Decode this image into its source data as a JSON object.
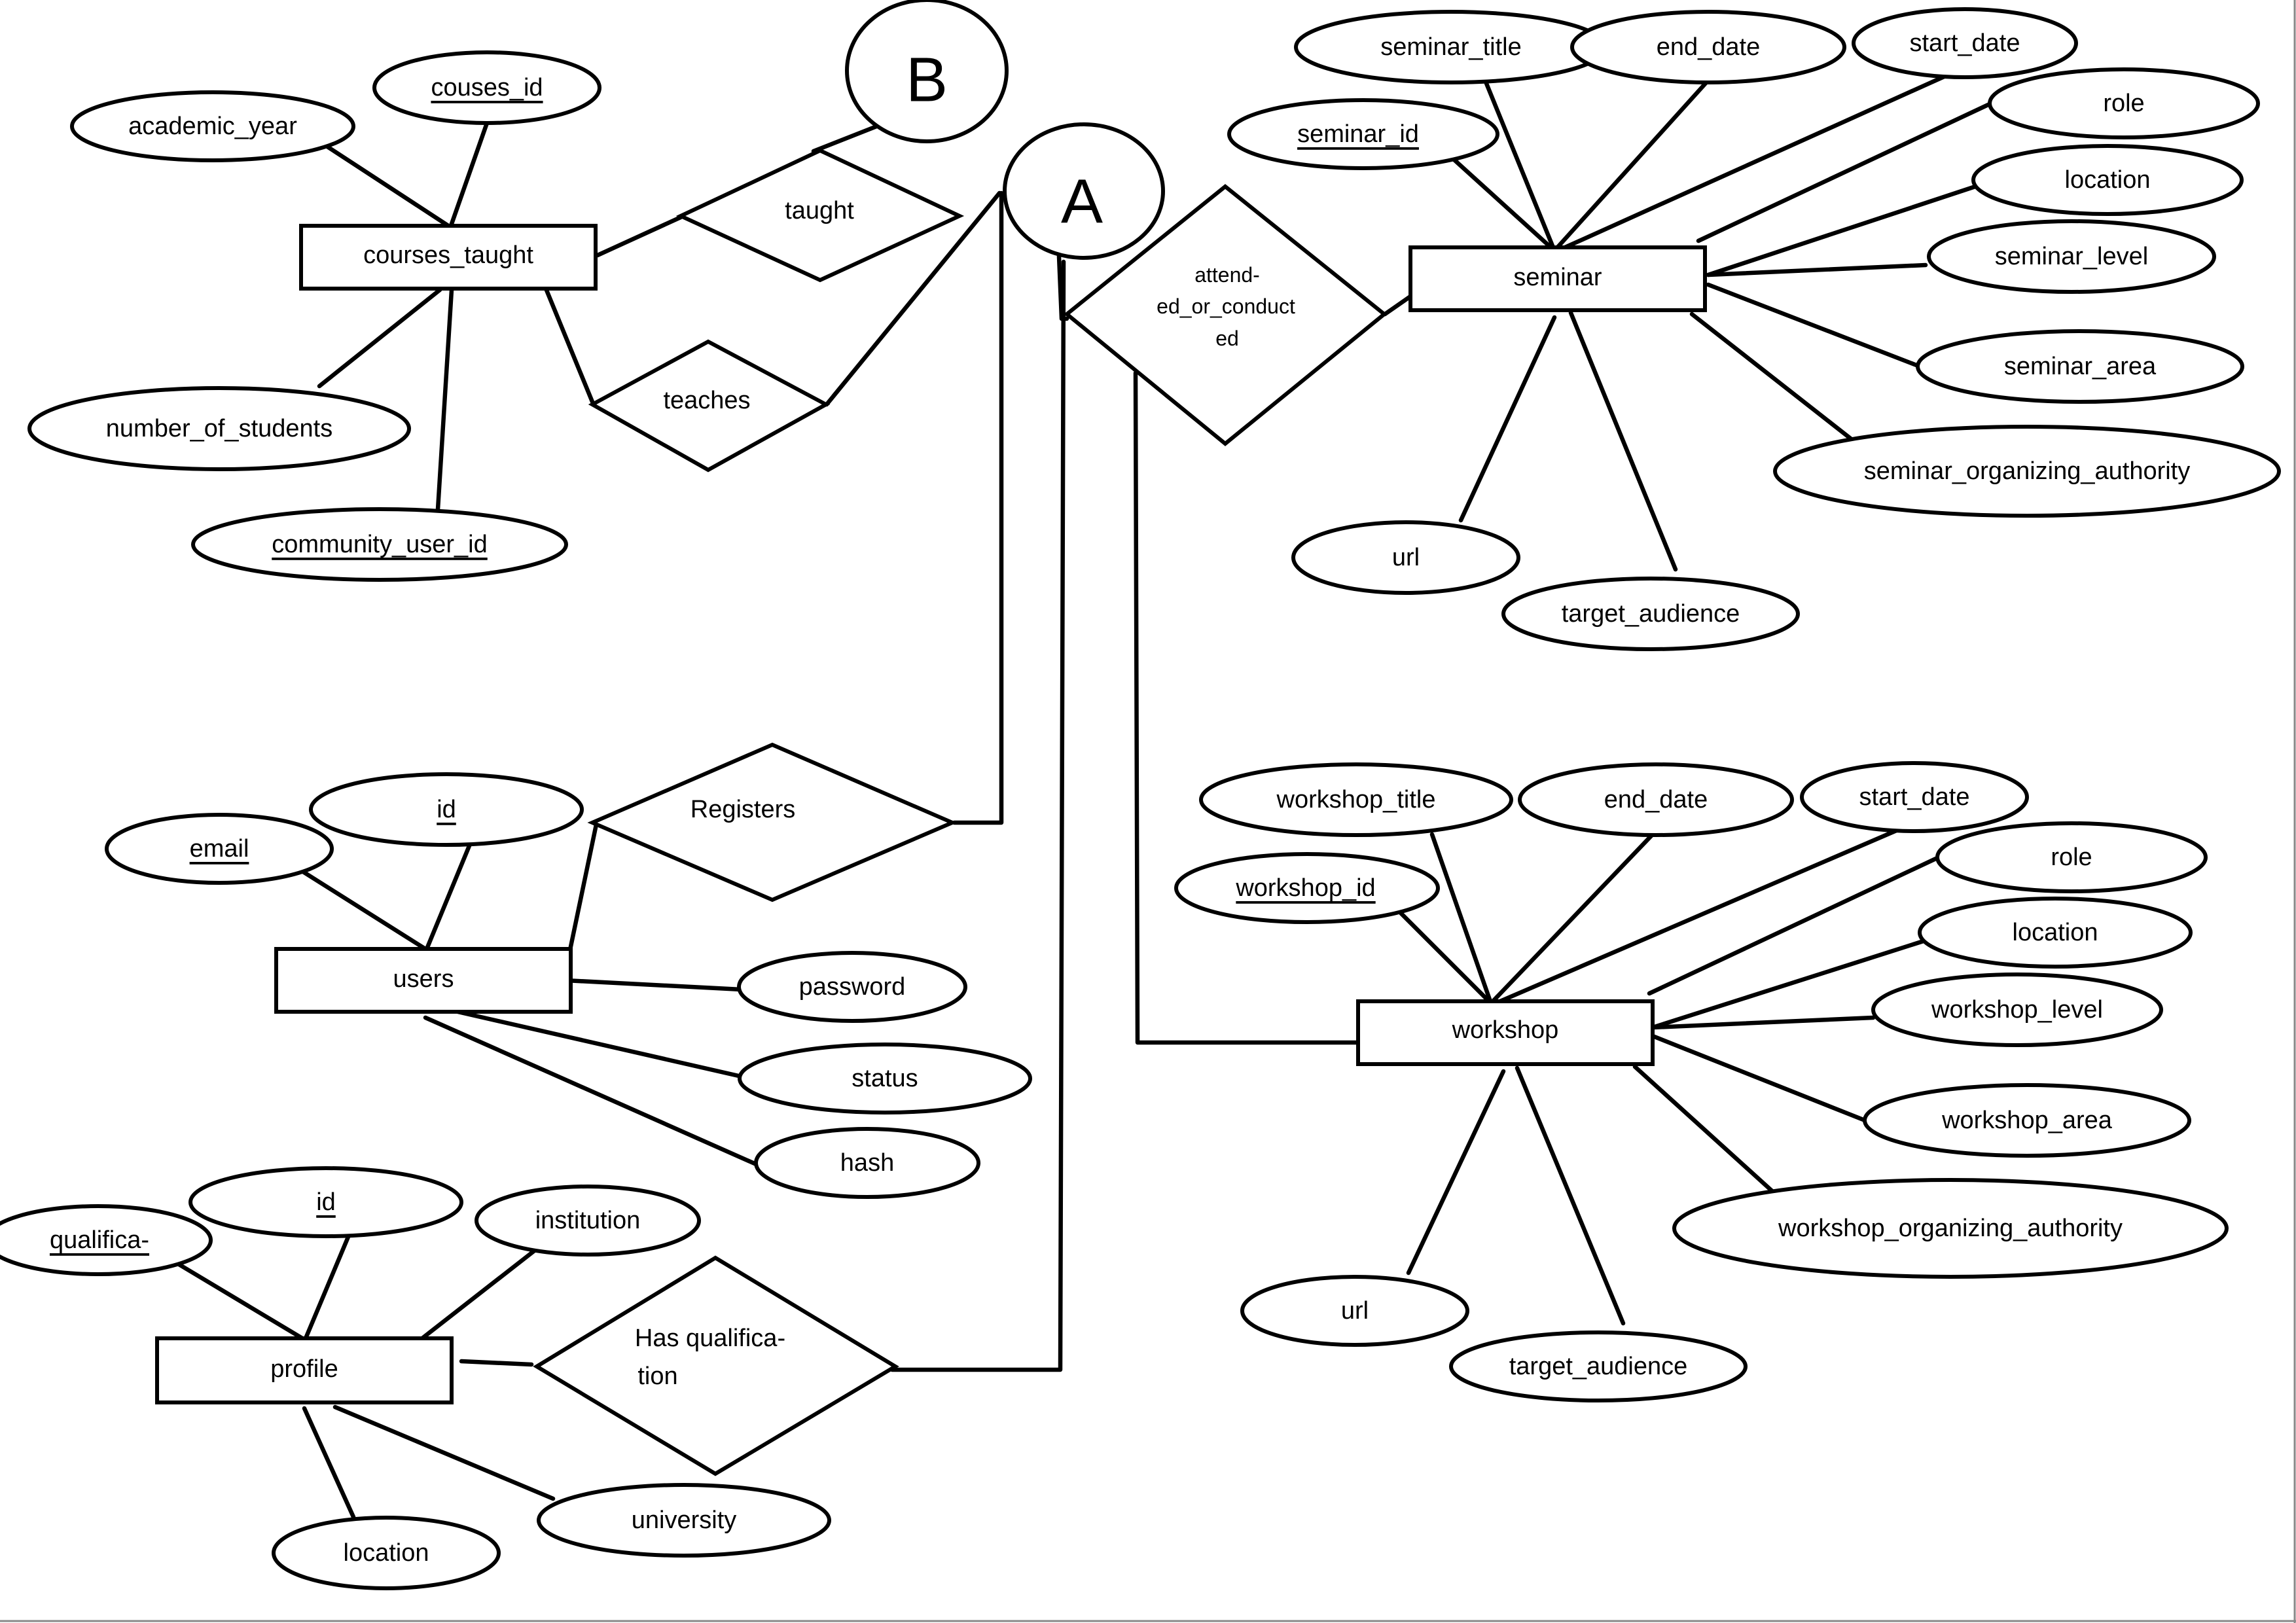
{
  "entities": {
    "courses_taught": "courses_taught",
    "seminar": "seminar",
    "users": "users",
    "workshop": "workshop",
    "profile": "profile"
  },
  "relationships": {
    "taught": "taught",
    "teaches": "teaches",
    "attended_or_conducted": [
      "attend-",
      "ed_or_conduct",
      "ed"
    ],
    "registers": "Registers",
    "has_qualification": [
      "Has qualifica-",
      "tion"
    ]
  },
  "connectors": {
    "a": "A",
    "b": "B"
  },
  "attributes": {
    "courses_taught": {
      "couses_id": "couses_id",
      "academic_year": "academic_year",
      "number_of_students": "number_of_students",
      "community_user_id": "community_user_id"
    },
    "seminar": {
      "seminar_title": "seminar_title",
      "end_date": "end_date",
      "start_date": "start_date",
      "role": "role",
      "seminar_id": "seminar_id",
      "location": "location",
      "seminar_level": "seminar_level",
      "seminar_area": "seminar_area",
      "seminar_organizing_authority": "seminar_organizing_authority",
      "url": "url",
      "target_audience": "target_audience"
    },
    "users": {
      "id": "id",
      "email": "email",
      "password": "password",
      "status": "status",
      "hash": "hash"
    },
    "workshop": {
      "workshop_title": "workshop_title",
      "end_date": "end_date",
      "start_date": "start_date",
      "role": "role",
      "workshop_id": "workshop_id",
      "location": "location",
      "workshop_level": "workshop_level",
      "workshop_area": "workshop_area",
      "workshop_organizing_authority": "workshop_organizing_authority",
      "url": "url",
      "target_audience": "target_audience"
    },
    "profile": {
      "id": "id",
      "qualifica": "qualifica-",
      "institution": "institution",
      "location": "location",
      "university": "university"
    }
  }
}
